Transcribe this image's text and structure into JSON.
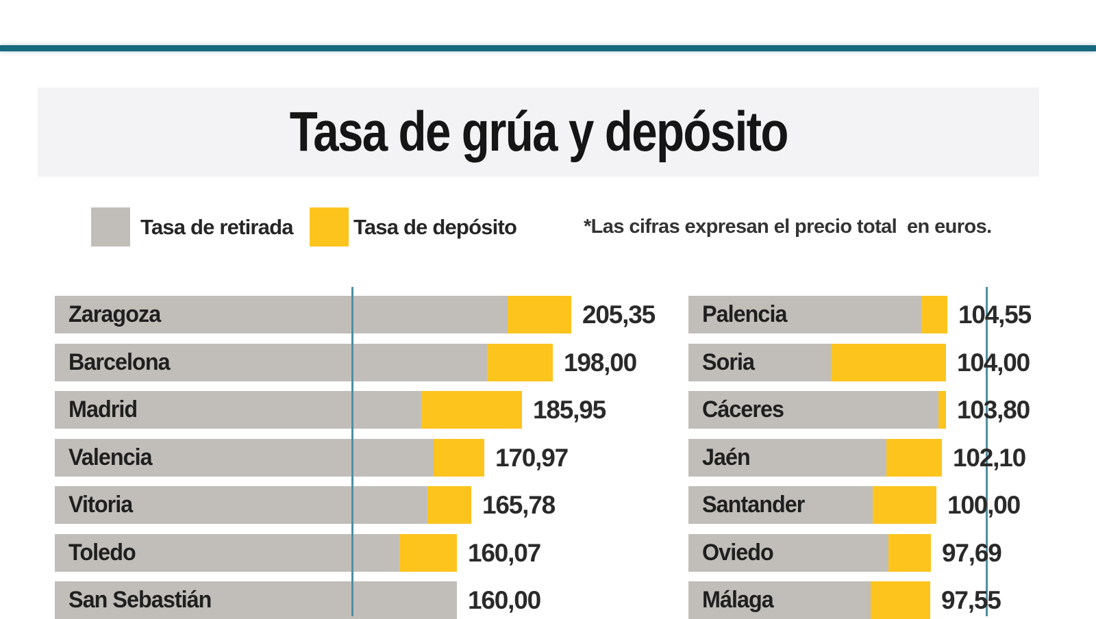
{
  "header": {
    "title": "Tasa de grúa y depósito"
  },
  "legend": {
    "items": [
      {
        "label": "Tasa de retirada",
        "color": "#c1beba"
      },
      {
        "label": "Tasa de depósito",
        "color": "#fcc41d"
      }
    ],
    "note": "*Las cifras expresan el precio total  en euros."
  },
  "colors": {
    "bar_gray": "#c1beba",
    "bar_yellow": "#fcc41d",
    "rule_teal": "#17697f",
    "grid_teal": "#4f8fa0",
    "title_strip": "#f3f3f5"
  },
  "chart_data": {
    "type": "bar",
    "orientation": "horizontal",
    "title": "Tasa de grúa y depósito",
    "legend": [
      "Tasa de retirada",
      "Tasa de depósito"
    ],
    "value_unit": "euros",
    "note": "*Las cifras expresan el precio total en euros.",
    "stacking": "each bar = tasa de retirada (gray) + tasa de depósito (yellow); printed number = total price in euros; depósito segment values estimated from bar pixel proportions",
    "columns": [
      {
        "rows": [
          {
            "city": "Zaragoza",
            "total": 205.35,
            "total_display": "205,35",
            "deposito_est": 25.3
          },
          {
            "city": "Barcelona",
            "total": 198.0,
            "total_display": "198,00",
            "deposito_est": 26.2
          },
          {
            "city": "Madrid",
            "total": 185.95,
            "total_display": "185,95",
            "deposito_est": 40.0
          },
          {
            "city": "Valencia",
            "total": 170.97,
            "total_display": "170,97",
            "deposito_est": 20.2
          },
          {
            "city": "Vitoria",
            "total": 165.78,
            "total_display": "165,78",
            "deposito_est": 17.4
          },
          {
            "city": "Toledo",
            "total": 160.07,
            "total_display": "160,07",
            "deposito_est": 22.9
          },
          {
            "city": "San Sebastián",
            "total": 160.0,
            "total_display": "160,00",
            "deposito_est": 0
          }
        ]
      },
      {
        "rows": [
          {
            "city": "Palencia",
            "total": 104.55,
            "total_display": "104,55",
            "deposito_est": 10.5
          },
          {
            "city": "Soria",
            "total": 104.0,
            "total_display": "104,00",
            "deposito_est": 46.4
          },
          {
            "city": "Cáceres",
            "total": 103.8,
            "total_display": "103,80",
            "deposito_est": 3.0
          },
          {
            "city": "Jaén",
            "total": 102.1,
            "total_display": "102,10",
            "deposito_est": 22.4
          },
          {
            "city": "Santander",
            "total": 100.0,
            "total_display": "100,00",
            "deposito_est": 25.7
          },
          {
            "city": "Oviedo",
            "total": 97.69,
            "total_display": "97,69",
            "deposito_est": 17.1
          },
          {
            "city": "Málaga",
            "total": 97.55,
            "total_display": "97,55",
            "deposito_est": 24.0
          }
        ]
      }
    ]
  }
}
